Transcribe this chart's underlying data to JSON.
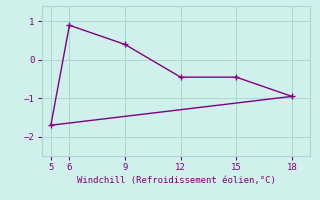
{
  "line1_x": [
    5,
    6,
    9,
    12,
    15,
    18
  ],
  "line1_y": [
    -1.7,
    0.9,
    0.4,
    -0.45,
    -0.45,
    -0.95
  ],
  "line2_x": [
    5,
    18
  ],
  "line2_y": [
    -1.7,
    -0.95
  ],
  "line_color": "#800080",
  "bg_color": "#d0f0ec",
  "grid_color": "#a8d8d0",
  "xlabel": "Windchill (Refroidissement éolien,°C)",
  "xlabel_color": "#800080",
  "xticks": [
    5,
    6,
    9,
    12,
    15,
    18
  ],
  "yticks": [
    -2,
    -1,
    0,
    1
  ],
  "xlim": [
    4.5,
    19.0
  ],
  "ylim": [
    -2.5,
    1.4
  ],
  "marker_size": 4,
  "linewidth": 1.0
}
